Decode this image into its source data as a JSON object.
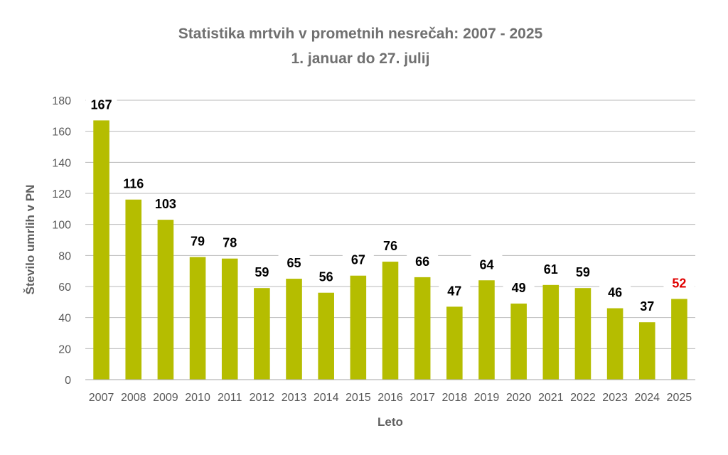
{
  "chart_data": {
    "type": "bar",
    "title": "Statistika mrtvih v prometnih nesrečah: 2007 - 2025",
    "subtitle": "1. januar do 27. julij",
    "xlabel": "Leto",
    "ylabel": "Število umrlih v PN",
    "ylim": [
      0,
      180
    ],
    "yticks": [
      "0",
      "20",
      "40",
      "60",
      "80",
      "100",
      "120",
      "140",
      "160",
      "180"
    ],
    "grid": true,
    "legend": "none",
    "categories": [
      "2007",
      "2008",
      "2009",
      "2010",
      "2011",
      "2012",
      "2013",
      "2014",
      "2015",
      "2016",
      "2017",
      "2018",
      "2019",
      "2020",
      "2021",
      "2022",
      "2023",
      "2024",
      "2025"
    ],
    "values": [
      167,
      116,
      103,
      79,
      78,
      59,
      65,
      56,
      67,
      76,
      66,
      47,
      64,
      49,
      61,
      59,
      46,
      37,
      52
    ],
    "bar_color": "#b5bd00",
    "label_color": "#000000",
    "highlight_label_color": "#e00000",
    "highlight_category": "2025"
  }
}
